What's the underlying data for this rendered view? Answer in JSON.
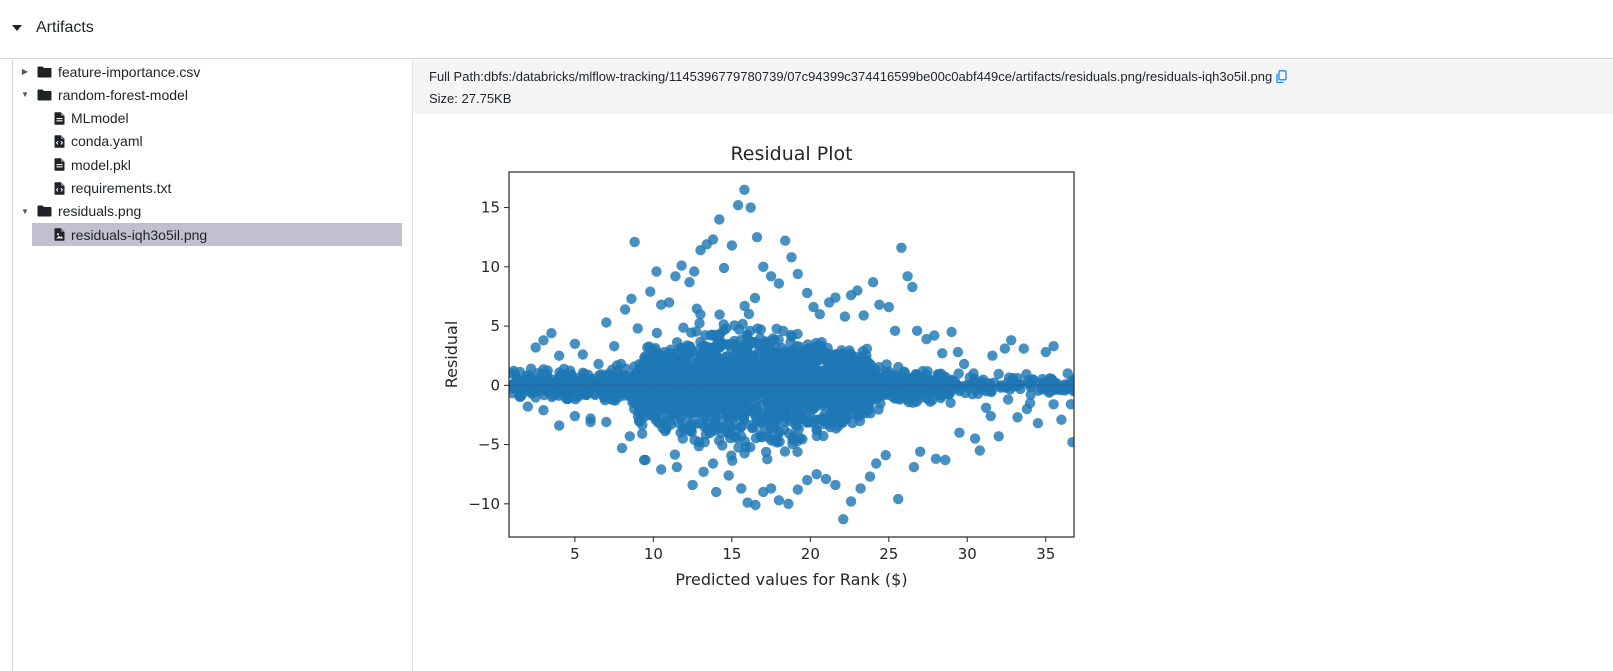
{
  "section": {
    "title": "Artifacts"
  },
  "tree": {
    "items": [
      {
        "label": "feature-importance.csv",
        "kind": "folder",
        "expanded": false,
        "level": 0
      },
      {
        "label": "random-forest-model",
        "kind": "folder",
        "expanded": true,
        "level": 0
      },
      {
        "label": "MLmodel",
        "kind": "file",
        "level": 1
      },
      {
        "label": "conda.yaml",
        "kind": "code-file",
        "level": 1
      },
      {
        "label": "model.pkl",
        "kind": "file",
        "level": 1
      },
      {
        "label": "requirements.txt",
        "kind": "code-file",
        "level": 1
      },
      {
        "label": "residuals.png",
        "kind": "folder",
        "expanded": true,
        "level": 0
      },
      {
        "label": "residuals-iqh3o5il.png",
        "kind": "image-file",
        "level": 1,
        "selected": true
      }
    ]
  },
  "detail": {
    "path_label": "Full Path:",
    "path_value": "dbfs:/databricks/mlflow-tracking/1145396779780739/07c94399c374416599be00c0abf449ce/artifacts/residuals.png/residuals-iqh3o5il.png",
    "size_label": "Size: ",
    "size_value": "27.75KB"
  },
  "colors": {
    "selected_row": "#c2bfcf",
    "point_color": "#1f77b4",
    "copy_icon": "#1a8cff"
  },
  "chart_data": {
    "type": "scatter",
    "title": "Residual Plot",
    "xlabel": "Predicted values for Rank ($)",
    "ylabel": "Residual",
    "xlim": [
      0.8,
      36.8
    ],
    "ylim": [
      -12.8,
      18
    ],
    "xticks": [
      5,
      10,
      15,
      20,
      25,
      30,
      35
    ],
    "yticks": [
      -10,
      -5,
      0,
      5,
      10,
      15
    ],
    "grid": false,
    "legend": "none",
    "reference_line": {
      "y": 0,
      "style": "dotted"
    },
    "fit_line": {
      "x": [
        0.8,
        36.8
      ],
      "y": [
        0,
        0
      ]
    },
    "points": [
      [
        1.0,
        1.0
      ],
      [
        1.5,
        -0.4
      ],
      [
        2.2,
        1.4
      ],
      [
        2.5,
        3.2
      ],
      [
        3.0,
        3.8
      ],
      [
        3.5,
        4.4
      ],
      [
        4.0,
        2.5
      ],
      [
        4.5,
        -1.0
      ],
      [
        5.0,
        3.5
      ],
      [
        5.5,
        2.6
      ],
      [
        6.0,
        -3.1
      ],
      [
        6.5,
        1.8
      ],
      [
        7.0,
        5.3
      ],
      [
        7.5,
        3.3
      ],
      [
        8.0,
        -5.3
      ],
      [
        8.2,
        6.4
      ],
      [
        8.6,
        7.3
      ],
      [
        8.8,
        12.1
      ],
      [
        9.0,
        4.8
      ],
      [
        9.4,
        -6.3
      ],
      [
        9.8,
        7.9
      ],
      [
        10.2,
        9.6
      ],
      [
        10.5,
        6.8
      ],
      [
        11.0,
        7.0
      ],
      [
        11.4,
        9.2
      ],
      [
        11.8,
        10.1
      ],
      [
        12.3,
        8.7
      ],
      [
        12.6,
        9.6
      ],
      [
        13.0,
        11.4
      ],
      [
        13.4,
        11.9
      ],
      [
        13.8,
        12.3
      ],
      [
        14.2,
        14.0
      ],
      [
        14.5,
        9.9
      ],
      [
        15.0,
        11.8
      ],
      [
        15.4,
        15.2
      ],
      [
        15.8,
        16.5
      ],
      [
        16.2,
        15.0
      ],
      [
        16.6,
        12.5
      ],
      [
        17.0,
        10.0
      ],
      [
        17.5,
        9.2
      ],
      [
        18.0,
        8.6
      ],
      [
        18.4,
        12.2
      ],
      [
        18.8,
        10.8
      ],
      [
        19.2,
        9.4
      ],
      [
        19.8,
        7.8
      ],
      [
        20.2,
        6.6
      ],
      [
        20.6,
        6.0
      ],
      [
        21.2,
        7.0
      ],
      [
        21.6,
        7.4
      ],
      [
        22.2,
        5.8
      ],
      [
        22.6,
        7.6
      ],
      [
        23.0,
        8.0
      ],
      [
        23.4,
        5.9
      ],
      [
        24.0,
        8.7
      ],
      [
        24.4,
        6.8
      ],
      [
        25.0,
        6.6
      ],
      [
        25.4,
        4.6
      ],
      [
        25.8,
        11.6
      ],
      [
        26.2,
        9.2
      ],
      [
        26.5,
        8.3
      ],
      [
        26.8,
        4.6
      ],
      [
        27.4,
        3.9
      ],
      [
        27.9,
        4.2
      ],
      [
        28.4,
        2.7
      ],
      [
        29.0,
        4.5
      ],
      [
        29.4,
        2.8
      ],
      [
        29.8,
        1.8
      ],
      [
        30.4,
        1.0
      ],
      [
        30.8,
        -5.5
      ],
      [
        31.2,
        -1.9
      ],
      [
        31.6,
        2.5
      ],
      [
        32.0,
        -4.3
      ],
      [
        32.4,
        3.1
      ],
      [
        32.8,
        3.8
      ],
      [
        33.2,
        -2.7
      ],
      [
        33.6,
        3.1
      ],
      [
        34.0,
        -1.5
      ],
      [
        34.5,
        -3.2
      ],
      [
        35.0,
        2.8
      ],
      [
        35.5,
        3.3
      ],
      [
        36.0,
        -2.9
      ],
      [
        36.4,
        1.0
      ],
      [
        36.7,
        -4.8
      ],
      [
        36.6,
        -1.6
      ],
      [
        2.0,
        -1.8
      ],
      [
        3.0,
        -2.1
      ],
      [
        4.0,
        -3.4
      ],
      [
        5.0,
        -2.6
      ],
      [
        6.0,
        -2.8
      ],
      [
        7.0,
        -3.1
      ],
      [
        8.5,
        -4.3
      ],
      [
        9.5,
        -6.3
      ],
      [
        10.5,
        -7.1
      ],
      [
        11.5,
        -6.9
      ],
      [
        12.5,
        -8.4
      ],
      [
        13.2,
        -7.3
      ],
      [
        13.8,
        -6.6
      ],
      [
        14.0,
        -9.0
      ],
      [
        14.8,
        -7.6
      ],
      [
        15.6,
        -8.7
      ],
      [
        16.0,
        -9.9
      ],
      [
        16.5,
        -10.1
      ],
      [
        17.0,
        -9.0
      ],
      [
        17.5,
        -8.7
      ],
      [
        18.0,
        -9.7
      ],
      [
        18.6,
        -10.0
      ],
      [
        19.2,
        -8.8
      ],
      [
        19.8,
        -8.0
      ],
      [
        20.4,
        -7.5
      ],
      [
        21.0,
        -7.9
      ],
      [
        21.6,
        -8.4
      ],
      [
        22.1,
        -11.3
      ],
      [
        22.6,
        -9.8
      ],
      [
        23.2,
        -8.7
      ],
      [
        23.8,
        -7.7
      ],
      [
        24.2,
        -6.6
      ],
      [
        24.8,
        -5.9
      ],
      [
        25.6,
        -9.6
      ],
      [
        26.6,
        -6.9
      ],
      [
        27.0,
        -5.6
      ],
      [
        28.0,
        -6.2
      ],
      [
        28.6,
        -6.3
      ],
      [
        29.5,
        -4.0
      ],
      [
        30.5,
        -4.5
      ],
      [
        31.5,
        -2.6
      ],
      [
        32.6,
        -1.2
      ],
      [
        33.8,
        -2.0
      ],
      [
        35.5,
        -1.6
      ]
    ]
  }
}
